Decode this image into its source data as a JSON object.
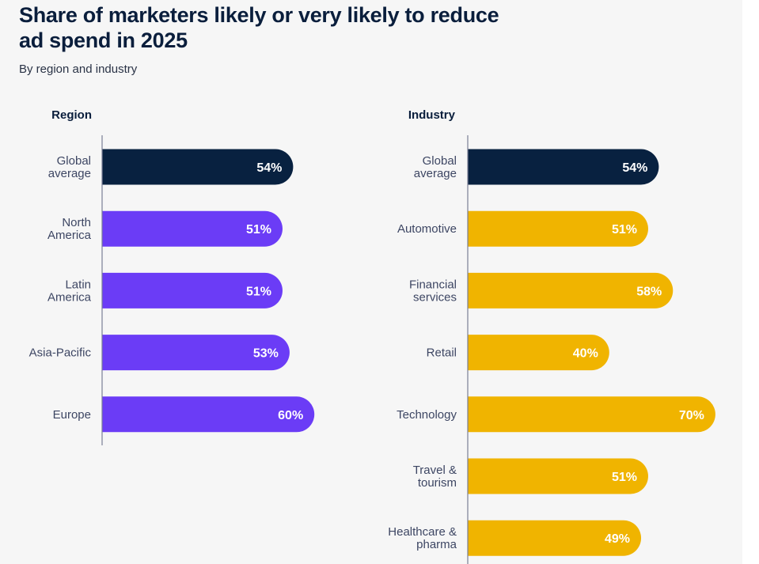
{
  "chart_data": [
    {
      "type": "bar",
      "orientation": "horizontal",
      "group_title": "Region",
      "categories": [
        [
          "Global",
          "average"
        ],
        [
          "North",
          "America"
        ],
        [
          "Latin",
          "America"
        ],
        [
          "Asia-Pacific"
        ],
        [
          "Europe"
        ]
      ],
      "values": [
        54,
        51,
        51,
        53,
        60
      ],
      "value_labels": [
        "54%",
        "51%",
        "51%",
        "53%",
        "60%"
      ],
      "highlight_index": 0,
      "xlim": [
        0,
        100
      ],
      "unit": "%"
    },
    {
      "type": "bar",
      "orientation": "horizontal",
      "group_title": "Industry",
      "categories": [
        [
          "Global",
          "average"
        ],
        [
          "Automotive"
        ],
        [
          "Financial",
          "services"
        ],
        [
          "Retail"
        ],
        [
          "Technology"
        ],
        [
          "Travel &",
          "tourism"
        ],
        [
          "Healthcare &",
          "pharma"
        ]
      ],
      "values": [
        54,
        51,
        58,
        40,
        70,
        51,
        49
      ],
      "value_labels": [
        "54%",
        "51%",
        "58%",
        "40%",
        "70%",
        "51%",
        "49%"
      ],
      "highlight_index": 0,
      "xlim": [
        0,
        100
      ],
      "unit": "%"
    }
  ],
  "header": {
    "title": "Share of marketers likely or very likely to reduce ad spend in 2025",
    "subtitle": "By region and industry"
  },
  "colors": {
    "highlight": "#082140",
    "region": "#6b3cf6",
    "industry": "#f0b400",
    "axis": "#7a7f96"
  }
}
